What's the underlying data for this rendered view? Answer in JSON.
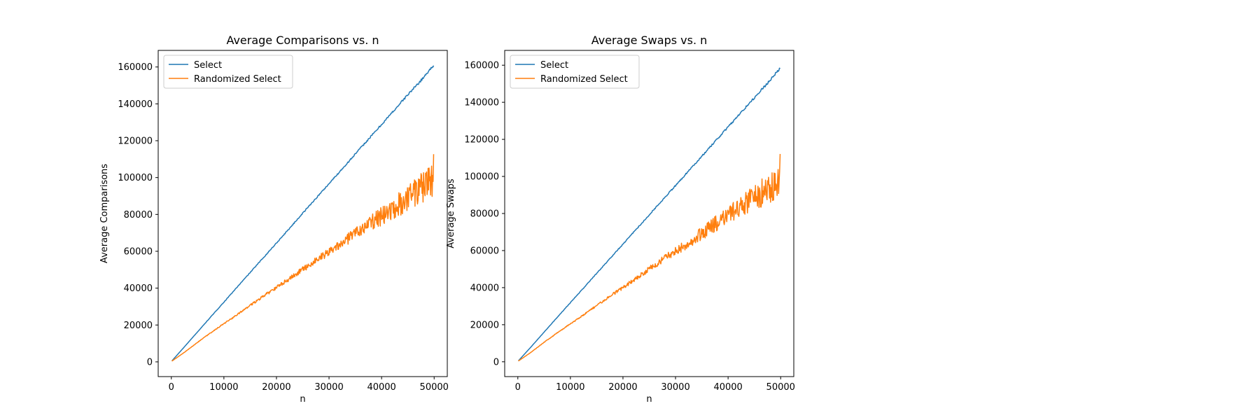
{
  "chart_data": [
    {
      "type": "line",
      "title": "Average Comparisons vs. n",
      "xlabel": "n",
      "ylabel": "Average Comparisons",
      "xlim": [
        -2500,
        52500
      ],
      "ylim": [
        -8000,
        169000
      ],
      "xticks": [
        0,
        10000,
        20000,
        30000,
        40000,
        50000
      ],
      "xtick_labels": [
        "0",
        "10000",
        "20000",
        "30000",
        "40000",
        "50000"
      ],
      "yticks": [
        0,
        20000,
        40000,
        60000,
        80000,
        100000,
        120000,
        140000,
        160000
      ],
      "ytick_labels": [
        "0",
        "20000",
        "40000",
        "60000",
        "80000",
        "100000",
        "120000",
        "140000",
        "160000"
      ],
      "legend": "top-left",
      "grid": false,
      "series": [
        {
          "name": "Select",
          "color": "#1f77b4",
          "x": [
            100,
            2500,
            5000,
            7500,
            10000,
            12500,
            15000,
            17500,
            20000,
            22500,
            25000,
            27500,
            30000,
            32500,
            35000,
            37500,
            40000,
            42500,
            45000,
            47500,
            49900
          ],
          "y": [
            500,
            8200,
            16300,
            24400,
            32400,
            40500,
            48500,
            56500,
            64500,
            72500,
            80700,
            88700,
            96700,
            104700,
            112800,
            120800,
            128800,
            136900,
            145000,
            152700,
            161000
          ]
        },
        {
          "name": "Randomized Select",
          "color": "#ff7f0e",
          "x": [
            100,
            2500,
            5000,
            7500,
            10000,
            12500,
            15000,
            17500,
            20000,
            22500,
            25000,
            27500,
            30000,
            32500,
            35000,
            37500,
            40000,
            42500,
            45000,
            47500,
            49900
          ],
          "y": [
            400,
            5200,
            10600,
            15800,
            20700,
            25500,
            30700,
            35600,
            40300,
            45200,
            50200,
            55000,
            60000,
            64500,
            69500,
            74500,
            79000,
            84000,
            88500,
            94000,
            98000
          ],
          "noisy": true
        }
      ]
    },
    {
      "type": "line",
      "title": "Average Swaps vs. n",
      "xlabel": "n",
      "ylabel": "Average Swaps",
      "xlim": [
        -2500,
        52500
      ],
      "ylim": [
        -8000,
        168000
      ],
      "xticks": [
        0,
        10000,
        20000,
        30000,
        40000,
        50000
      ],
      "xtick_labels": [
        "0",
        "10000",
        "20000",
        "30000",
        "40000",
        "50000"
      ],
      "yticks": [
        0,
        20000,
        40000,
        60000,
        80000,
        100000,
        120000,
        140000,
        160000
      ],
      "ytick_labels": [
        "0",
        "20000",
        "40000",
        "60000",
        "80000",
        "100000",
        "120000",
        "140000",
        "160000"
      ],
      "legend": "top-left",
      "grid": false,
      "series": [
        {
          "name": "Select",
          "color": "#1f77b4",
          "x": [
            100,
            2500,
            5000,
            7500,
            10000,
            12500,
            15000,
            17500,
            20000,
            22500,
            25000,
            27500,
            30000,
            32500,
            35000,
            37500,
            40000,
            42500,
            45000,
            47500,
            49900
          ],
          "y": [
            500,
            8000,
            16000,
            24000,
            31900,
            39800,
            47700,
            55600,
            63500,
            71400,
            79300,
            87200,
            95100,
            103000,
            110900,
            118800,
            126700,
            134600,
            142500,
            150300,
            158500
          ],
          "noisy": false
        },
        {
          "name": "Randomized Select",
          "color": "#ff7f0e",
          "x": [
            100,
            2500,
            5000,
            7500,
            10000,
            12500,
            15000,
            17500,
            20000,
            22500,
            25000,
            27500,
            30000,
            32500,
            35000,
            37500,
            40000,
            42500,
            45000,
            47500,
            49900
          ],
          "y": [
            400,
            5100,
            10500,
            15600,
            20500,
            25300,
            30400,
            35300,
            40000,
            45000,
            50000,
            54800,
            59700,
            64300,
            69300,
            74200,
            78800,
            83700,
            88300,
            93600,
            97500
          ],
          "noisy": true
        }
      ]
    }
  ]
}
